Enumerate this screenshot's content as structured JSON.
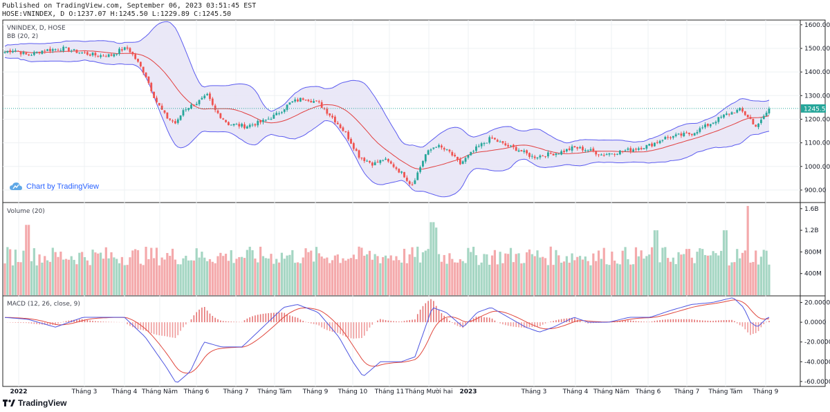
{
  "header": {
    "line1": "Published on TradingView.com, September 06, 2023 03:51:45 EST",
    "line2": "HOSE:VNINDEX, D O:1237.07 H:1245.50 L:1229.89 C:1245.50"
  },
  "footer": {
    "brand": "TradingView"
  },
  "badge": {
    "label": "Chart by TradingView"
  },
  "colors": {
    "up": "#26a69a",
    "down": "#ef5350",
    "up_vol": "#a5d6c3",
    "down_vol": "#f4a9ab",
    "band": "#5b5bf0",
    "basis": "#e23f3f",
    "band_fill": "#e8e6f6",
    "macd": "#4d55e0",
    "signal": "#e0463c",
    "price_line": "#26a69a",
    "price_tag": "#26a69a"
  },
  "chart_data": [
    {
      "type": "candlestick",
      "title": "VNINDEX, D, HOSE",
      "indicator": "BB (20, 2)",
      "ylim": [
        850,
        1620
      ],
      "yticks": [
        900,
        1000,
        1100,
        1200,
        1300,
        1400,
        1500,
        1600
      ],
      "ytick_labels": [
        "900.00",
        "1000.00",
        "1100.00",
        "1200.00",
        "1300.00",
        "1400.00",
        "1500.00",
        "1600.00"
      ],
      "last_price_label": "1245.50",
      "last_price": 1245.5,
      "control_points": [
        [
          0,
          1480
        ],
        [
          20,
          1495
        ],
        [
          40,
          1470
        ],
        [
          60,
          1490
        ],
        [
          90,
          1500
        ],
        [
          120,
          1480
        ],
        [
          140,
          1470
        ],
        [
          160,
          1470
        ],
        [
          175,
          1495
        ],
        [
          185,
          1500
        ],
        [
          195,
          1460
        ],
        [
          210,
          1390
        ],
        [
          225,
          1280
        ],
        [
          240,
          1210
        ],
        [
          255,
          1180
        ],
        [
          265,
          1240
        ],
        [
          285,
          1270
        ],
        [
          300,
          1300
        ],
        [
          310,
          1240
        ],
        [
          330,
          1180
        ],
        [
          355,
          1170
        ],
        [
          380,
          1190
        ],
        [
          400,
          1220
        ],
        [
          420,
          1270
        ],
        [
          440,
          1290
        ],
        [
          460,
          1270
        ],
        [
          480,
          1210
        ],
        [
          500,
          1140
        ],
        [
          520,
          1040
        ],
        [
          540,
          1010
        ],
        [
          555,
          1030
        ],
        [
          570,
          1000
        ],
        [
          585,
          960
        ],
        [
          595,
          920
        ],
        [
          605,
          980
        ],
        [
          615,
          1050
        ],
        [
          630,
          1090
        ],
        [
          650,
          1060
        ],
        [
          665,
          1010
        ],
        [
          690,
          1080
        ],
        [
          710,
          1120
        ],
        [
          730,
          1090
        ],
        [
          750,
          1070
        ],
        [
          770,
          1040
        ],
        [
          790,
          1050
        ],
        [
          810,
          1060
        ],
        [
          830,
          1080
        ],
        [
          850,
          1070
        ],
        [
          870,
          1050
        ],
        [
          890,
          1060
        ],
        [
          910,
          1070
        ],
        [
          940,
          1090
        ],
        [
          960,
          1120
        ],
        [
          980,
          1130
        ],
        [
          1000,
          1140
        ],
        [
          1020,
          1170
        ],
        [
          1050,
          1220
        ],
        [
          1070,
          1240
        ],
        [
          1085,
          1200
        ],
        [
          1090,
          1170
        ],
        [
          1100,
          1190
        ],
        [
          1112,
          1245
        ]
      ],
      "volume": {
        "title": "Volume (20)",
        "ylim": [
          0,
          1.7
        ],
        "yticks": [
          0.4,
          0.8,
          1.2,
          1.6
        ],
        "ytick_labels": [
          "400M",
          "800M",
          "1.2B",
          "1.6B"
        ],
        "spikes": [
          [
            40,
            1.3
          ],
          [
            625,
            1.35
          ],
          [
            630,
            1.25
          ],
          [
            1082,
            1.65
          ],
          [
            1048,
            1.2
          ],
          [
            948,
            1.2
          ]
        ]
      },
      "macd": {
        "title": "MACD (12, 26, close, 9)",
        "ylim": [
          -65,
          26
        ],
        "yticks": [
          -60,
          -40,
          -20,
          0,
          20
        ],
        "ytick_labels": [
          "-60.0000",
          "-40.0000",
          "-20.0000",
          "0.0000",
          "20.0000"
        ],
        "control_points": [
          [
            5,
            5
          ],
          [
            40,
            3
          ],
          [
            80,
            -5
          ],
          [
            120,
            5
          ],
          [
            180,
            5
          ],
          [
            210,
            -15
          ],
          [
            240,
            -45
          ],
          [
            255,
            -62
          ],
          [
            275,
            -50
          ],
          [
            295,
            -20
          ],
          [
            320,
            -25
          ],
          [
            350,
            -25
          ],
          [
            380,
            -5
          ],
          [
            410,
            15
          ],
          [
            430,
            18
          ],
          [
            460,
            10
          ],
          [
            490,
            -15
          ],
          [
            510,
            -40
          ],
          [
            525,
            -55
          ],
          [
            550,
            -40
          ],
          [
            580,
            -40
          ],
          [
            600,
            -35
          ],
          [
            615,
            -5
          ],
          [
            625,
            15
          ],
          [
            645,
            10
          ],
          [
            670,
            -5
          ],
          [
            690,
            10
          ],
          [
            710,
            15
          ],
          [
            735,
            5
          ],
          [
            760,
            -5
          ],
          [
            780,
            -10
          ],
          [
            800,
            -5
          ],
          [
            830,
            5
          ],
          [
            850,
            0
          ],
          [
            880,
            0
          ],
          [
            910,
            5
          ],
          [
            940,
            5
          ],
          [
            970,
            12
          ],
          [
            1000,
            18
          ],
          [
            1030,
            20
          ],
          [
            1060,
            25
          ],
          [
            1075,
            15
          ],
          [
            1085,
            0
          ],
          [
            1095,
            -5
          ],
          [
            1110,
            5
          ]
        ]
      },
      "x_labels": [
        "2022",
        "Tháng 3",
        "Tháng 4",
        "Tháng Năm",
        "Tháng 6",
        "Tháng 7",
        "Tháng Tám",
        "Tháng 9",
        "Tháng 10",
        "Tháng 11",
        "Tháng Mười hai",
        "2023",
        "Tháng 3",
        "Tháng 4",
        "Tháng Năm",
        "Tháng 6",
        "Tháng 7",
        "Tháng Tám",
        "Tháng 9"
      ],
      "x_label_pos": [
        27,
        122,
        180,
        231,
        284,
        341,
        397,
        456,
        510,
        563,
        620,
        677,
        772,
        832,
        884,
        937,
        993,
        1049,
        1107
      ],
      "x_label_bold": [
        true,
        false,
        false,
        false,
        false,
        false,
        false,
        false,
        false,
        false,
        false,
        true,
        false,
        false,
        false,
        false,
        false,
        false,
        false
      ]
    }
  ]
}
